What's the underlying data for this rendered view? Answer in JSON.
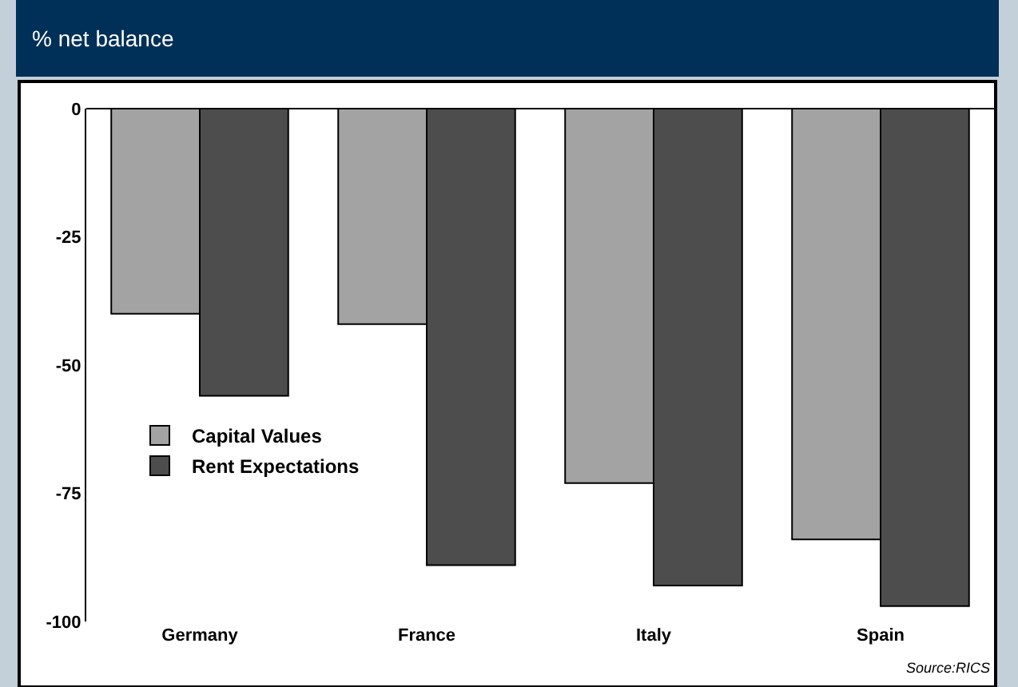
{
  "chart_data": {
    "type": "bar",
    "title": "% net balance",
    "categories": [
      "Germany",
      "France",
      "Italy",
      "Spain"
    ],
    "series": [
      {
        "name": "Capital Values",
        "color": "#a3a3a3",
        "values": [
          -40,
          -42,
          -73,
          -84
        ]
      },
      {
        "name": "Rent Expectations",
        "color": "#4d4d4d",
        "values": [
          -56,
          -89,
          -93,
          -97
        ]
      }
    ],
    "ylim": [
      -100,
      0
    ],
    "yticks": [
      0,
      -25,
      -50,
      -75,
      -100
    ],
    "grid": false,
    "legend": "left",
    "annotations": [
      "Source:RICS"
    ]
  }
}
